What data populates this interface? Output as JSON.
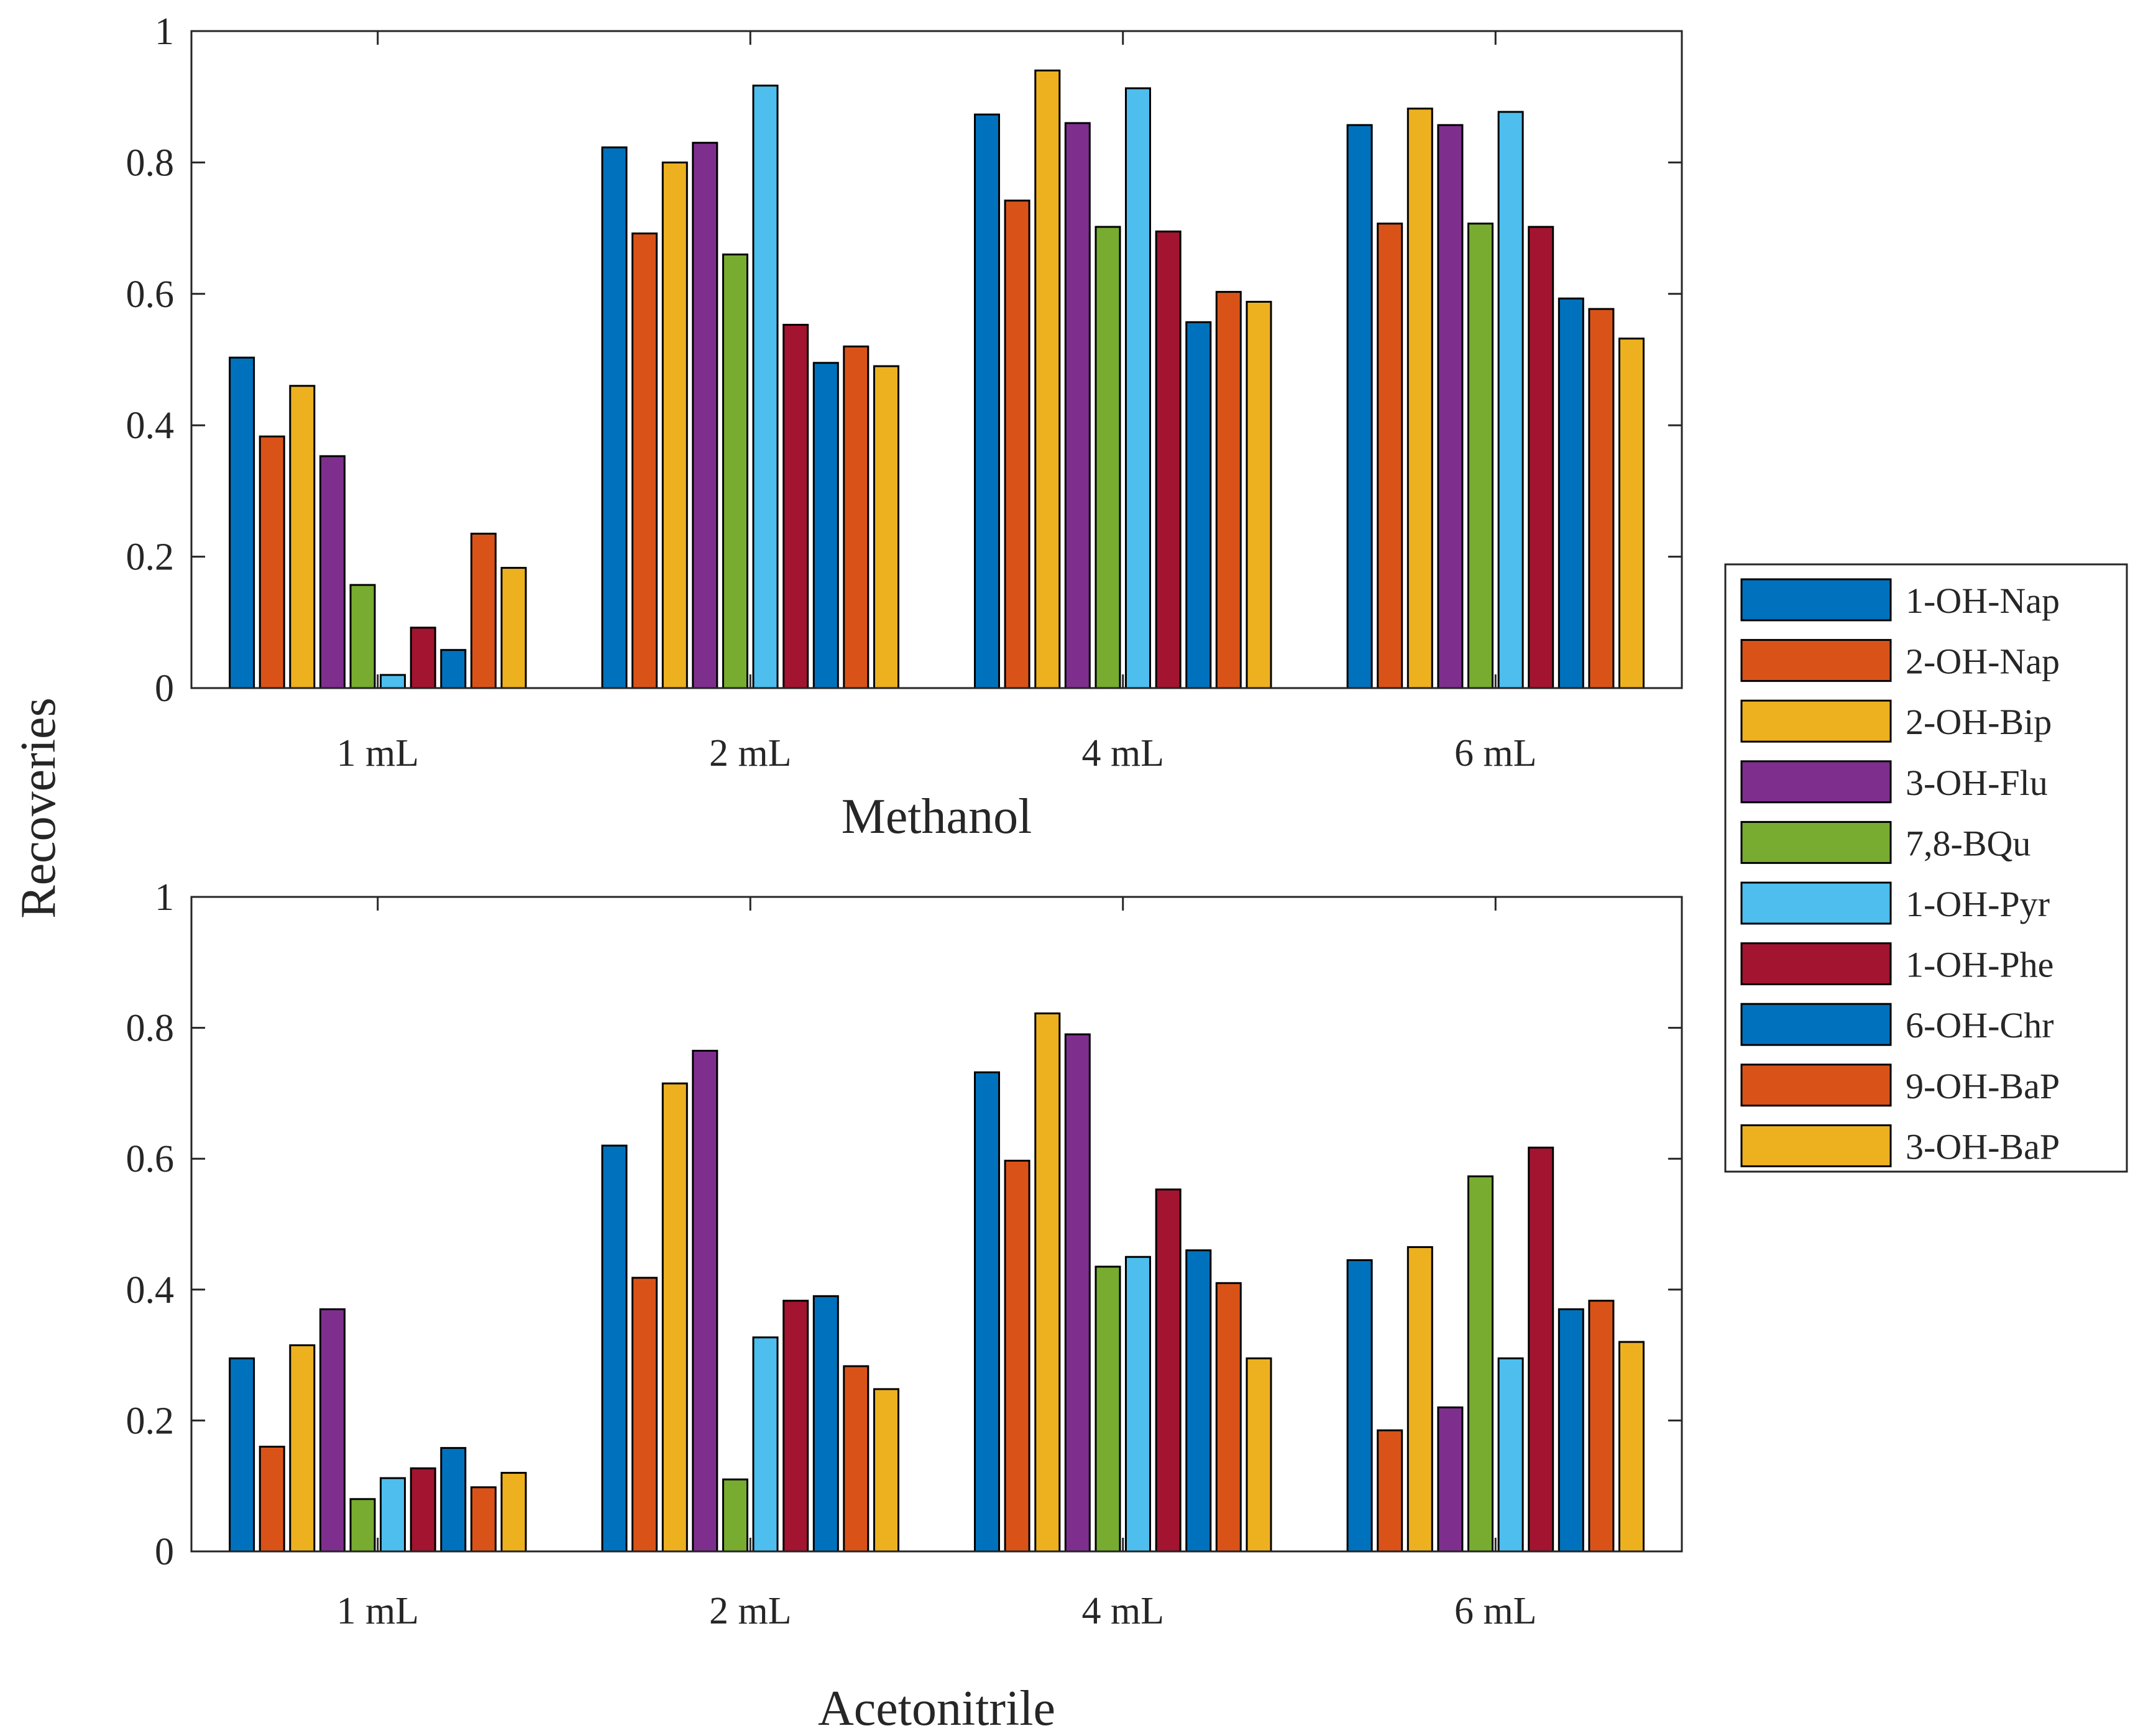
{
  "chart_data": {
    "type": "bar",
    "ylabel": "Recoveries",
    "ylim": [
      0,
      1
    ],
    "yticks": [
      "0",
      "0.2",
      "0.4",
      "0.6",
      "0.8",
      "1"
    ],
    "categories": [
      "1 mL",
      "2 mL",
      "4 mL",
      "6 mL"
    ],
    "legend_position": "right",
    "series": [
      {
        "name": "1-OH-Nap",
        "color": "#0072BD"
      },
      {
        "name": "2-OH-Nap",
        "color": "#D95319"
      },
      {
        "name": "2-OH-Bip",
        "color": "#EDB120"
      },
      {
        "name": "3-OH-Flu",
        "color": "#7E2F8E"
      },
      {
        "name": "7,8-BQu",
        "color": "#77AC30"
      },
      {
        "name": "1-OH-Pyr",
        "color": "#4DBEEE"
      },
      {
        "name": "1-OH-Phe",
        "color": "#A2142F"
      },
      {
        "name": "6-OH-Chr",
        "color": "#0072BD"
      },
      {
        "name": "9-OH-BaP",
        "color": "#D95319"
      },
      {
        "name": "3-OH-BaP",
        "color": "#EDB120"
      }
    ],
    "panels": [
      {
        "xlabel": "Methanol",
        "values": [
          [
            0.503,
            0.823,
            0.873,
            0.857
          ],
          [
            0.383,
            0.692,
            0.742,
            0.707
          ],
          [
            0.46,
            0.8,
            0.94,
            0.882
          ],
          [
            0.353,
            0.83,
            0.86,
            0.857
          ],
          [
            0.157,
            0.66,
            0.702,
            0.707
          ],
          [
            0.02,
            0.917,
            0.913,
            0.877
          ],
          [
            0.092,
            0.553,
            0.695,
            0.702
          ],
          [
            0.058,
            0.495,
            0.557,
            0.593
          ],
          [
            0.235,
            0.52,
            0.603,
            0.577
          ],
          [
            0.183,
            0.49,
            0.588,
            0.532
          ]
        ]
      },
      {
        "xlabel": "Acetonitrile",
        "values": [
          [
            0.295,
            0.62,
            0.732,
            0.445
          ],
          [
            0.16,
            0.418,
            0.597,
            0.185
          ],
          [
            0.315,
            0.715,
            0.822,
            0.465
          ],
          [
            0.37,
            0.765,
            0.79,
            0.22
          ],
          [
            0.08,
            0.11,
            0.435,
            0.573
          ],
          [
            0.112,
            0.327,
            0.45,
            0.295
          ],
          [
            0.127,
            0.383,
            0.553,
            0.617
          ],
          [
            0.158,
            0.39,
            0.46,
            0.37
          ],
          [
            0.098,
            0.283,
            0.41,
            0.383
          ],
          [
            0.12,
            0.248,
            0.295,
            0.32
          ]
        ]
      }
    ]
  }
}
